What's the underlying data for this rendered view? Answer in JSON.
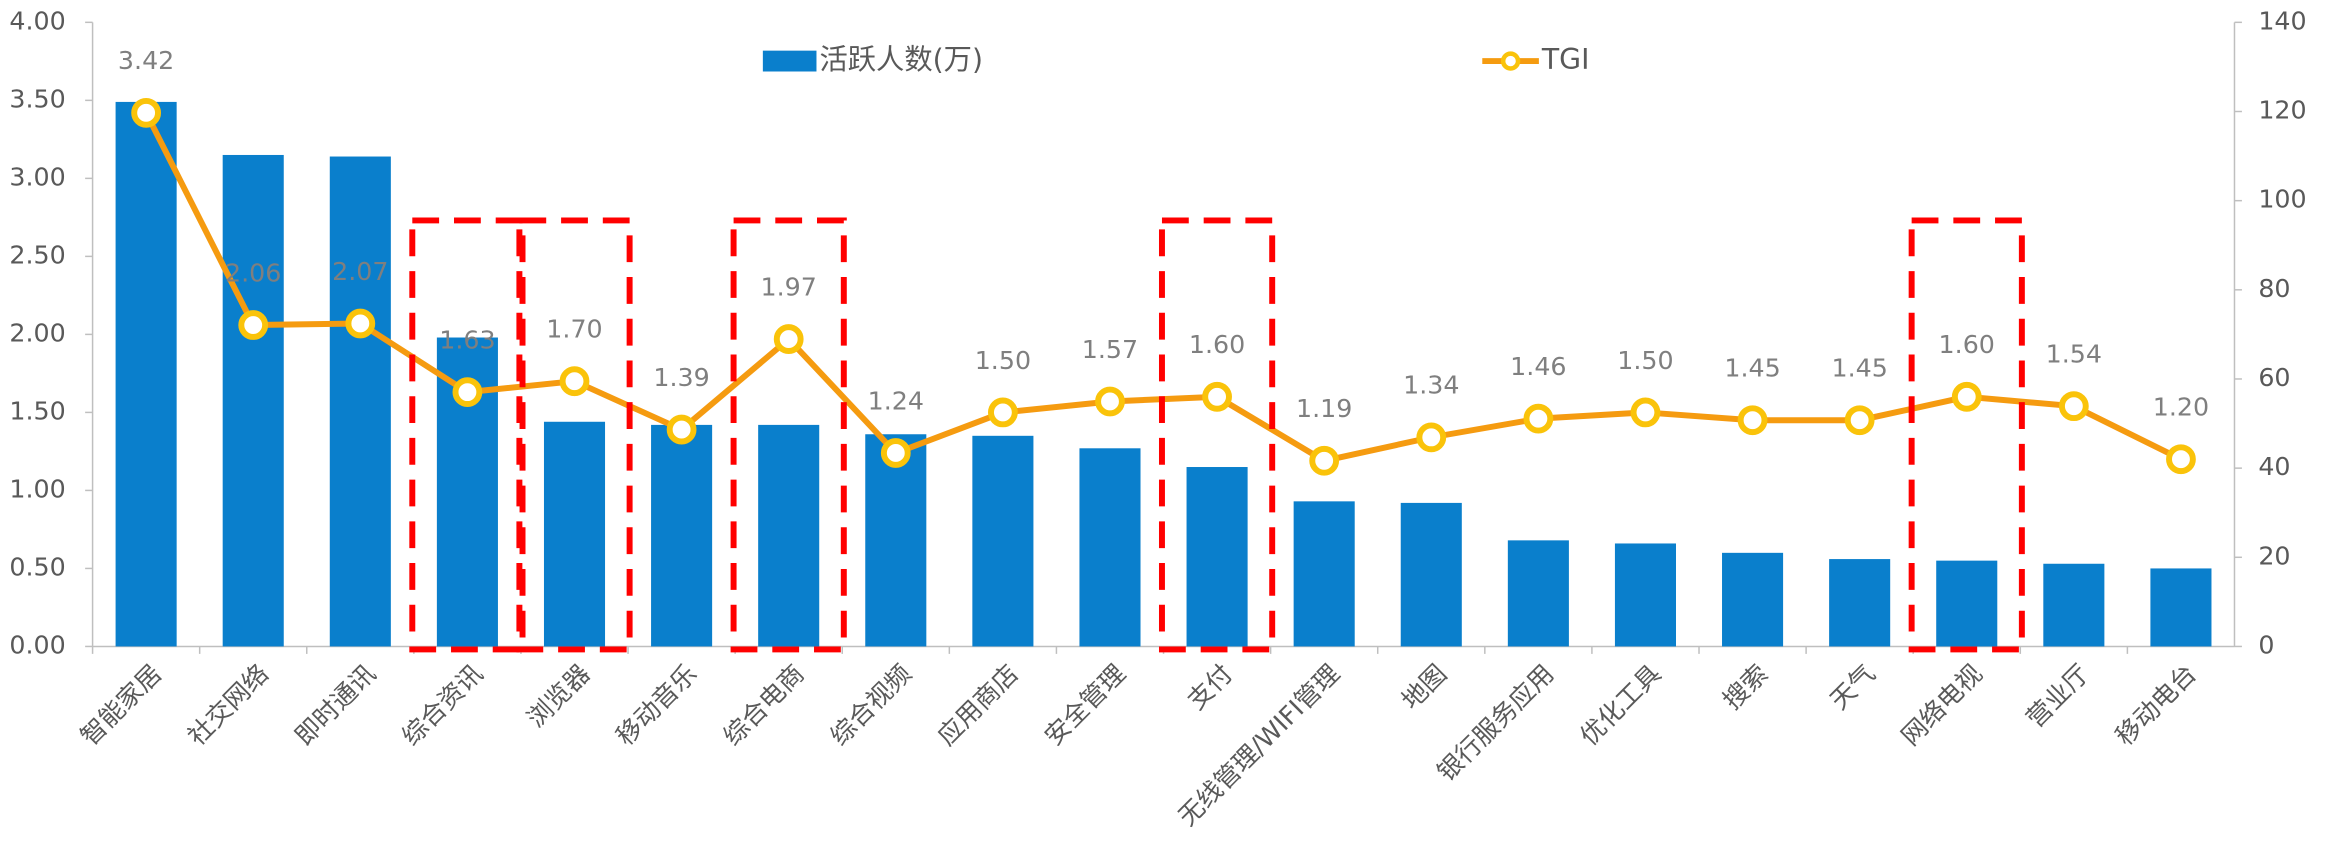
{
  "chart_data": {
    "type": "bar",
    "categories": [
      "智能家居",
      "社交网络",
      "即时通讯",
      "综合资讯",
      "浏览器",
      "移动音乐",
      "综合电商",
      "综合视频",
      "应用商店",
      "安全管理",
      "支付",
      "无线管理/WIFI管理",
      "地图",
      "银行服务应用",
      "优化工具",
      "搜索",
      "天气",
      "网络电视",
      "营业厅",
      "移动电台"
    ],
    "series": [
      {
        "name": "活跃人数(万)",
        "type": "bar",
        "color": "#0a7fcc",
        "values": [
          3.49,
          3.15,
          3.14,
          1.98,
          1.44,
          1.42,
          1.42,
          1.36,
          1.35,
          1.27,
          1.15,
          0.93,
          0.92,
          0.68,
          0.66,
          0.6,
          0.56,
          0.55,
          0.53,
          0.5
        ]
      },
      {
        "name": "TGI",
        "type": "line",
        "color": "#f59b10",
        "values": [
          3.42,
          2.06,
          2.07,
          1.63,
          1.7,
          1.39,
          1.97,
          1.24,
          1.5,
          1.57,
          1.6,
          1.19,
          1.34,
          1.46,
          1.5,
          1.45,
          1.45,
          1.6,
          1.54,
          1.2
        ],
        "value_labels": [
          "3.42",
          "2.06",
          "2.07",
          "1.63",
          "1.70",
          "1.39",
          "1.97",
          "1.24",
          "1.50",
          "1.57",
          "1.60",
          "1.19",
          "1.34",
          "1.46",
          "1.50",
          "1.45",
          "1.45",
          "1.60",
          "1.54",
          "1.20"
        ]
      }
    ],
    "ylim": [
      0,
      4
    ],
    "yticks": [
      {
        "value": 0,
        "label": "0.00"
      },
      {
        "value": 0.5,
        "label": "0.50"
      },
      {
        "value": 1,
        "label": "1.00"
      },
      {
        "value": 1.5,
        "label": "1.50"
      },
      {
        "value": 2,
        "label": "2.00"
      },
      {
        "value": 2.5,
        "label": "2.50"
      },
      {
        "value": 3,
        "label": "3.00"
      },
      {
        "value": 3.5,
        "label": "3.50"
      },
      {
        "value": 4,
        "label": "4.00"
      }
    ],
    "y2lim": [
      0,
      140
    ],
    "y2ticks": [
      0,
      20,
      40,
      60,
      80,
      100,
      120,
      140
    ],
    "highlighted": [
      "综合资讯",
      "浏览器",
      "综合电商",
      "支付",
      "网络电视"
    ]
  }
}
